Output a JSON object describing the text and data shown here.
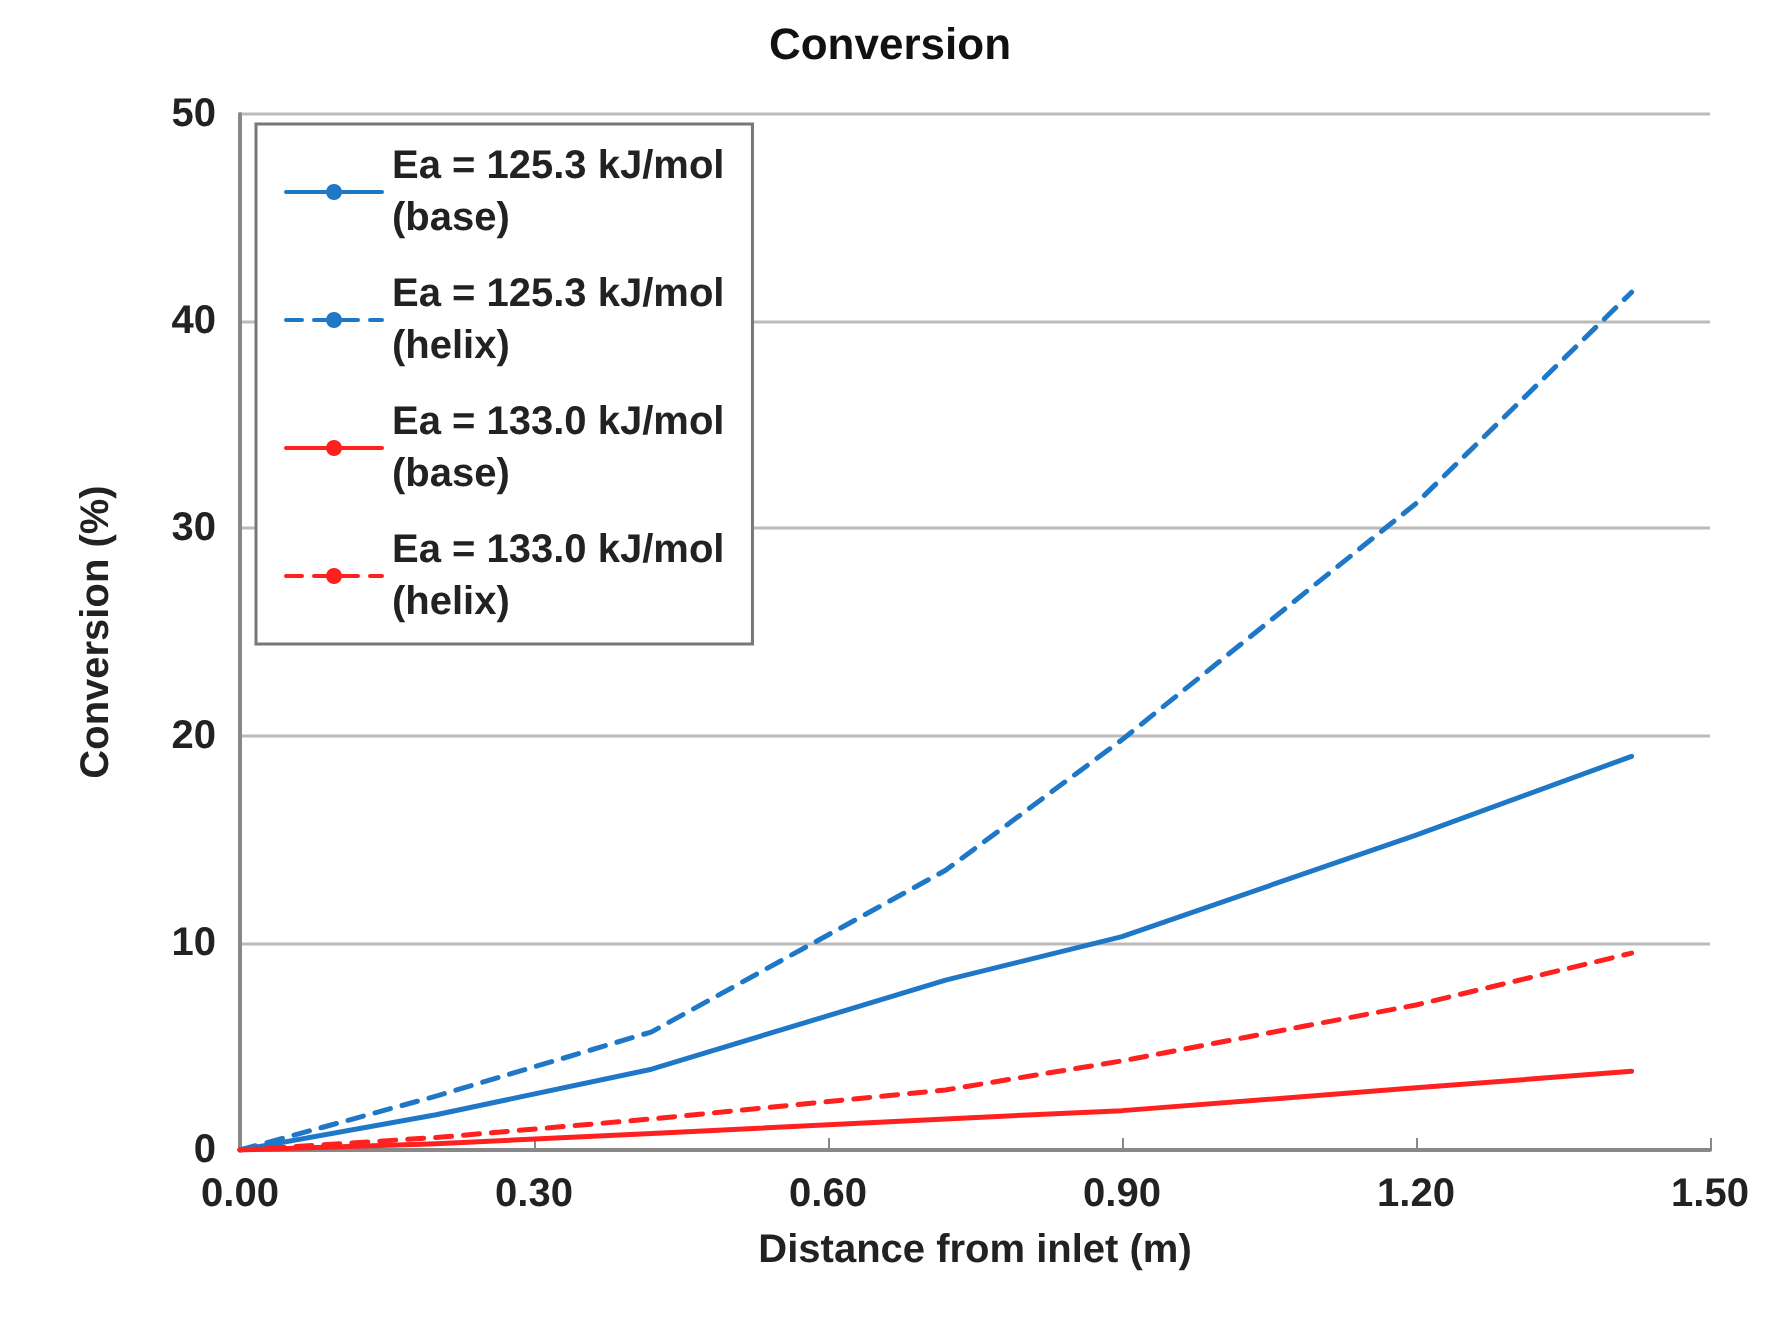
{
  "chart_data": {
    "type": "line",
    "title": "Conversion",
    "xlabel": "Distance from inlet (m)",
    "ylabel": "Conversion (%)",
    "x": [
      0,
      0.2,
      0.42,
      0.72,
      0.9,
      1.2,
      1.42
    ],
    "series": [
      {
        "name": "Ea = 125.3 kJ/mol (base)",
        "color": "#1f77c8",
        "line_style": "solid",
        "values": [
          0,
          1.7,
          3.9,
          8.2,
          10.3,
          15.2,
          19.0
        ]
      },
      {
        "name": "Ea = 125.3 kJ/mol (helix)",
        "color": "#1f77c8",
        "line_style": "dashed",
        "values": [
          0,
          2.6,
          5.7,
          13.5,
          19.8,
          31.2,
          41.4
        ]
      },
      {
        "name": "Ea = 133.0 kJ/mol (base)",
        "color": "#ff2020",
        "line_style": "solid",
        "values": [
          0,
          0.3,
          0.8,
          1.5,
          1.9,
          3.0,
          3.8
        ]
      },
      {
        "name": "Ea = 133.0 kJ/mol (helix)",
        "color": "#ff2020",
        "line_style": "dashed",
        "values": [
          0,
          0.6,
          1.5,
          2.9,
          4.3,
          7.0,
          9.5
        ]
      }
    ],
    "xlim": [
      0,
      1.5
    ],
    "xticks": [
      {
        "value": 0,
        "label": "0.00"
      },
      {
        "value": 0.3,
        "label": "0.30"
      },
      {
        "value": 0.6,
        "label": "0.60"
      },
      {
        "value": 0.9,
        "label": "0.90"
      },
      {
        "value": 1.2,
        "label": "1.20"
      },
      {
        "value": 1.5,
        "label": "1.50"
      }
    ],
    "ylim": [
      0,
      50
    ],
    "yticks": [
      0,
      10,
      20,
      30,
      40,
      50
    ],
    "grid": "y",
    "legend": "top left",
    "marker": "none"
  }
}
